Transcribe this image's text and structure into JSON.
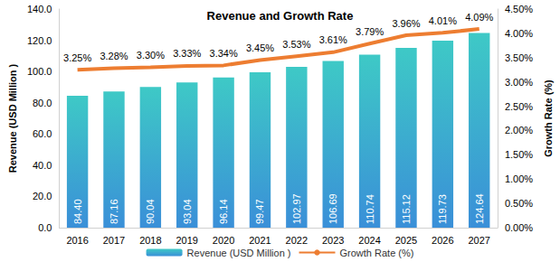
{
  "chart_data": {
    "type": "bar",
    "title": "Revenue and Growth Rate",
    "categories": [
      "2016",
      "2017",
      "2018",
      "2019",
      "2020",
      "2021",
      "2022",
      "2023",
      "2024",
      "2025",
      "2026",
      "2027"
    ],
    "y_label": "Revenue (USD Million )",
    "y2_label": "Growth Rate (%)",
    "ylim": [
      0,
      140
    ],
    "yticks": [
      {
        "value": 0,
        "label": "0.0"
      },
      {
        "value": 20,
        "label": "20.0"
      },
      {
        "value": 40,
        "label": "40.0"
      },
      {
        "value": 60,
        "label": "60.0"
      },
      {
        "value": 80,
        "label": "80.0"
      },
      {
        "value": 100,
        "label": "100.0"
      },
      {
        "value": 120,
        "label": "120.0"
      },
      {
        "value": 140,
        "label": "140.0"
      }
    ],
    "y2lim": [
      0,
      4.5
    ],
    "y2ticks": [
      {
        "value": 0,
        "label": "0.00%"
      },
      {
        "value": 0.5,
        "label": "0.50%"
      },
      {
        "value": 1,
        "label": "1.00%"
      },
      {
        "value": 1.5,
        "label": "1.50%"
      },
      {
        "value": 2,
        "label": "2.00%"
      },
      {
        "value": 2.5,
        "label": "2.50%"
      },
      {
        "value": 3,
        "label": "3.00%"
      },
      {
        "value": 3.5,
        "label": "3.50%"
      },
      {
        "value": 4,
        "label": "4.00%"
      },
      {
        "value": 4.5,
        "label": "4.50%"
      }
    ],
    "series": [
      {
        "name": "Revenue (USD Million )",
        "type": "bar",
        "color": "#3ec9c6",
        "values": [
          84.4,
          87.16,
          90.04,
          93.04,
          96.14,
          99.47,
          102.97,
          106.69,
          110.74,
          115.12,
          119.73,
          124.64
        ],
        "value_labels": [
          "84.40",
          "87.16",
          "90.04",
          "93.04",
          "96.14",
          "99.47",
          "102.97",
          "106.69",
          "110.74",
          "115.12",
          "119.73",
          "124.64"
        ]
      },
      {
        "name": "Growth Rate (%)",
        "type": "line",
        "axis": "y2",
        "color": "#ed7d31",
        "values": [
          3.25,
          3.28,
          3.3,
          3.33,
          3.34,
          3.45,
          3.53,
          3.61,
          3.79,
          3.96,
          4.01,
          4.09
        ],
        "value_labels": [
          "3.25%",
          "3.28%",
          "3.30%",
          "3.33%",
          "3.34%",
          "3.45%",
          "3.53%",
          "3.61%",
          "3.79%",
          "3.96%",
          "4.01%",
          "4.09%"
        ]
      }
    ],
    "data_labels": true,
    "legend": "bottom",
    "grid": false
  }
}
